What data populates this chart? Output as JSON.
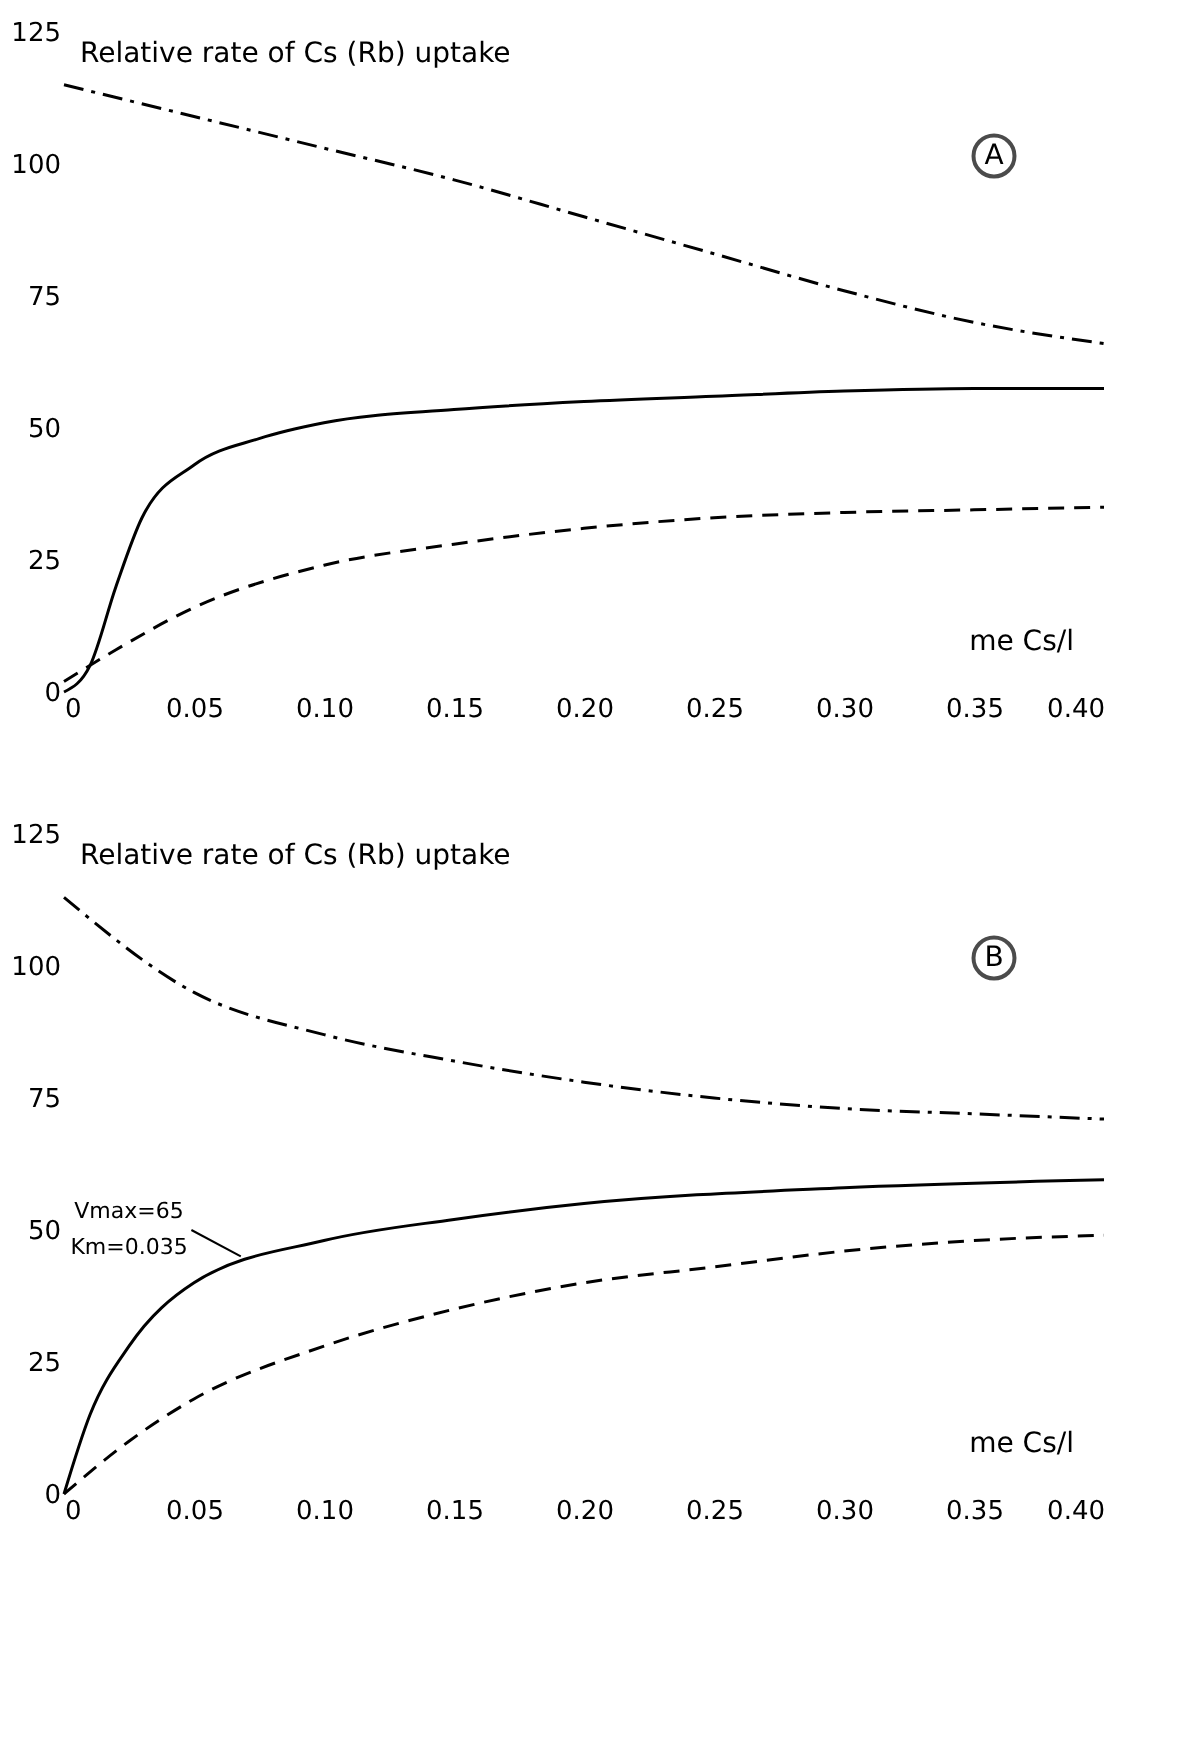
{
  "chart_data": [
    {
      "type": "line",
      "ylabel": "Relative rate of Cs (Rb) uptake",
      "xlabel": "me Cs/l",
      "annotations": [
        "A"
      ],
      "xlim": [
        0,
        0.4
      ],
      "xticks": [
        0,
        {
          "value": 0.05,
          "label": "0.05"
        },
        {
          "value": 0.1,
          "label": "0.10"
        },
        {
          "value": 0.15,
          "label": "0.15"
        },
        {
          "value": 0.2,
          "label": "0.20"
        },
        {
          "value": 0.25,
          "label": "0.25"
        },
        {
          "value": 0.3,
          "label": "0.30"
        },
        {
          "value": 0.35,
          "label": "0.35"
        },
        {
          "value": 0.4,
          "label": "0.40"
        }
      ],
      "ylim": [
        0,
        125
      ],
      "yticks": [
        0,
        25,
        50,
        75,
        100,
        125
      ],
      "grid": false,
      "series": [
        {
          "color": "#000000",
          "line_style": "dashdot",
          "x": [
            0,
            0.05,
            0.1,
            0.15,
            0.2,
            0.25,
            0.3,
            0.35,
            0.4
          ],
          "values": [
            115,
            109,
            103,
            97,
            90,
            83,
            76,
            70,
            66
          ]
        },
        {
          "color": "#000000",
          "line_style": "solid",
          "x": [
            0,
            0.01,
            0.02,
            0.03,
            0.05,
            0.075,
            0.1,
            0.15,
            0.2,
            0.25,
            0.3,
            0.35,
            0.4
          ],
          "values": [
            0,
            5,
            20,
            33,
            43,
            48,
            51,
            53.5,
            55,
            56,
            57,
            57.5,
            57.5
          ]
        },
        {
          "color": "#000000",
          "line_style": "dashed",
          "x": [
            0,
            0.02,
            0.05,
            0.1,
            0.15,
            0.2,
            0.25,
            0.3,
            0.35,
            0.4
          ],
          "values": [
            2,
            8,
            16,
            24,
            28,
            31,
            33,
            34,
            34.5,
            35
          ]
        }
      ]
    },
    {
      "type": "line",
      "ylabel": "Relative rate of Cs (Rb) uptake",
      "xlabel": "me Cs/l",
      "annotations": [
        "B",
        {
          "text": "Vmax=65 Km=0.035",
          "x": 0.07,
          "y": 44
        }
      ],
      "xlim": [
        0,
        0.4
      ],
      "xticks": [
        0,
        {
          "value": 0.05,
          "label": "0.05"
        },
        {
          "value": 0.1,
          "label": "0.10"
        },
        {
          "value": 0.15,
          "label": "0.15"
        },
        {
          "value": 0.2,
          "label": "0.20"
        },
        {
          "value": 0.25,
          "label": "0.25"
        },
        {
          "value": 0.3,
          "label": "0.30"
        },
        {
          "value": 0.35,
          "label": "0.35"
        },
        {
          "value": 0.4,
          "label": "0.40"
        }
      ],
      "ylim": [
        0,
        125
      ],
      "yticks": [
        0,
        25,
        50,
        75,
        100,
        125
      ],
      "grid": false,
      "series": [
        {
          "color": "#000000",
          "line_style": "dashdot",
          "x": [
            0,
            0.05,
            0.1,
            0.15,
            0.2,
            0.25,
            0.3,
            0.35,
            0.4
          ],
          "values": [
            113,
            95,
            87,
            82,
            78,
            75,
            73,
            72,
            71
          ]
        },
        {
          "color": "#000000",
          "line_style": "solid",
          "x": [
            0,
            0.01,
            0.025,
            0.05,
            0.1,
            0.15,
            0.2,
            0.3,
            0.4
          ],
          "values": [
            0,
            15,
            28,
            40,
            48,
            52,
            55,
            58,
            59.5
          ]
        },
        {
          "color": "#000000",
          "line_style": "dashed",
          "x": [
            0,
            0.025,
            0.05,
            0.1,
            0.15,
            0.2,
            0.25,
            0.3,
            0.35,
            0.4
          ],
          "values": [
            0,
            10,
            18,
            28,
            35,
            40,
            43,
            46,
            48,
            49
          ]
        }
      ]
    }
  ]
}
